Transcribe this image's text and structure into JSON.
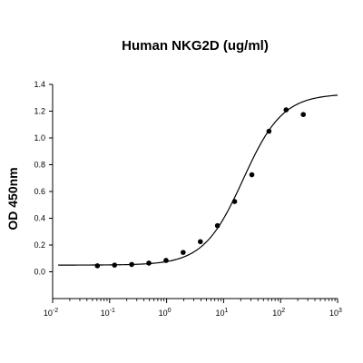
{
  "chart_data": {
    "type": "scatter",
    "title": "Human NKG2D (ug/ml)",
    "xlabel": "",
    "ylabel": "OD 450nm",
    "x_scale": "log",
    "xlim": [
      0.01,
      1000
    ],
    "ylim": [
      -0.2,
      1.4
    ],
    "x_ticks": [
      0.01,
      0.1,
      1,
      10,
      100,
      1000
    ],
    "x_tick_labels": [
      {
        "base": "10",
        "exp": "-2"
      },
      {
        "base": "10",
        "exp": "-1"
      },
      {
        "base": "10",
        "exp": "0"
      },
      {
        "base": "10",
        "exp": "1"
      },
      {
        "base": "10",
        "exp": "2"
      },
      {
        "base": "10",
        "exp": "3"
      }
    ],
    "y_ticks": [
      0.0,
      0.2,
      0.4,
      0.6,
      0.8,
      1.0,
      1.2,
      1.4
    ],
    "y_tick_labels": [
      "0.0",
      "0.2",
      "0.4",
      "0.6",
      "0.8",
      "1.0",
      "1.2",
      "1.4"
    ],
    "grid": false,
    "series": [
      {
        "marker": "circle",
        "color": "#000000",
        "x": [
          0.061,
          0.122,
          0.244,
          0.488,
          0.977,
          1.95,
          3.91,
          7.81,
          15.6,
          31.3,
          62.5,
          125,
          250
        ],
        "y": [
          0.045,
          0.05,
          0.055,
          0.065,
          0.085,
          0.145,
          0.225,
          0.345,
          0.525,
          0.725,
          1.05,
          1.21,
          1.175
        ]
      }
    ],
    "fit_curve": {
      "model": "4PL",
      "color": "#000000",
      "bottom": 0.05,
      "top": 1.33,
      "ec50": 22,
      "hill": 1.25
    }
  }
}
